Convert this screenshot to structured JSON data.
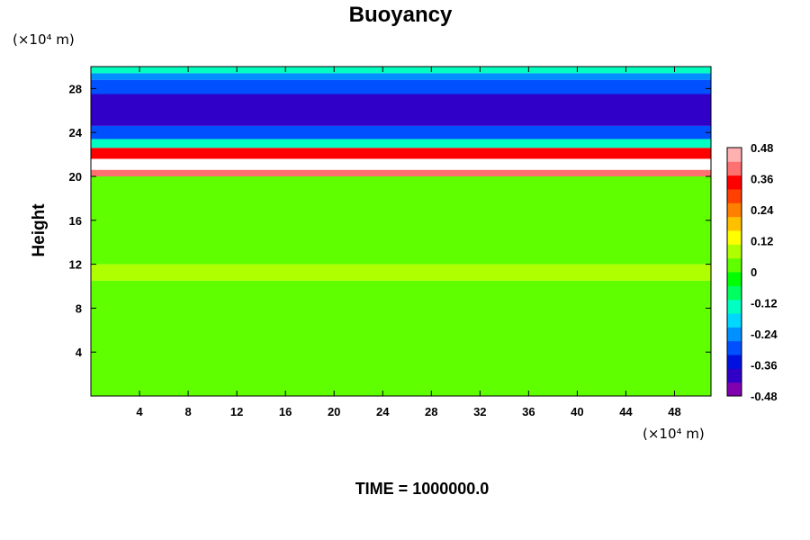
{
  "chart_data": {
    "type": "heatmap",
    "title": "Buoyancy",
    "ylabel": "Height",
    "xlabel": "",
    "x_unit_label": "(×10⁴ m)",
    "y_unit_label": "(×10⁴ m)",
    "xlim": [
      0,
      51
    ],
    "ylim": [
      0,
      30
    ],
    "x_ticks": [
      4,
      8,
      12,
      16,
      20,
      24,
      28,
      32,
      36,
      40,
      44,
      48
    ],
    "y_ticks": [
      4,
      8,
      12,
      16,
      20,
      24,
      28
    ],
    "colorbar": {
      "range": [
        -0.48,
        0.48
      ],
      "tick_labels": [
        "0.48",
        "0.36",
        "0.24",
        "0.12",
        "0",
        "-0.12",
        "-0.24",
        "-0.36",
        "-0.48"
      ],
      "tick_values": [
        0.48,
        0.36,
        0.24,
        0.12,
        0,
        -0.12,
        -0.24,
        -0.36,
        -0.48
      ],
      "colors_low_to_high": [
        "#8000b0",
        "#3000c8",
        "#0010e0",
        "#0050ff",
        "#0090ff",
        "#00d8ff",
        "#00ffc0",
        "#00ff60",
        "#00ff00",
        "#60ff00",
        "#b0ff00",
        "#ffff00",
        "#ffc000",
        "#ff8000",
        "#ff4000",
        "#ff0000",
        "#ff7070",
        "#ffb0b0"
      ]
    },
    "bands": [
      {
        "y_from": 0,
        "y_to": 10.5,
        "value": 0.0
      },
      {
        "y_from": 10.5,
        "y_to": 12,
        "value": 0.1
      },
      {
        "y_from": 12,
        "y_to": 20,
        "value": 0.03
      },
      {
        "y_from": 20,
        "y_to": 20.6,
        "value": 0.4
      },
      {
        "y_from": 20.6,
        "y_to": 21.6,
        "value": 0.5
      },
      {
        "y_from": 21.6,
        "y_to": 22.6,
        "value": 0.35
      },
      {
        "y_from": 22.6,
        "y_to": 23.4,
        "value": -0.15
      },
      {
        "y_from": 23.4,
        "y_to": 24.6,
        "value": -0.3
      },
      {
        "y_from": 24.6,
        "y_to": 27.5,
        "value": -0.4
      },
      {
        "y_from": 27.5,
        "y_to": 28.8,
        "value": -0.32
      },
      {
        "y_from": 28.8,
        "y_to": 29.4,
        "value": -0.22
      },
      {
        "y_from": 29.4,
        "y_to": 30,
        "value": -0.12
      }
    ],
    "footer": "TIME = 1000000.0"
  }
}
